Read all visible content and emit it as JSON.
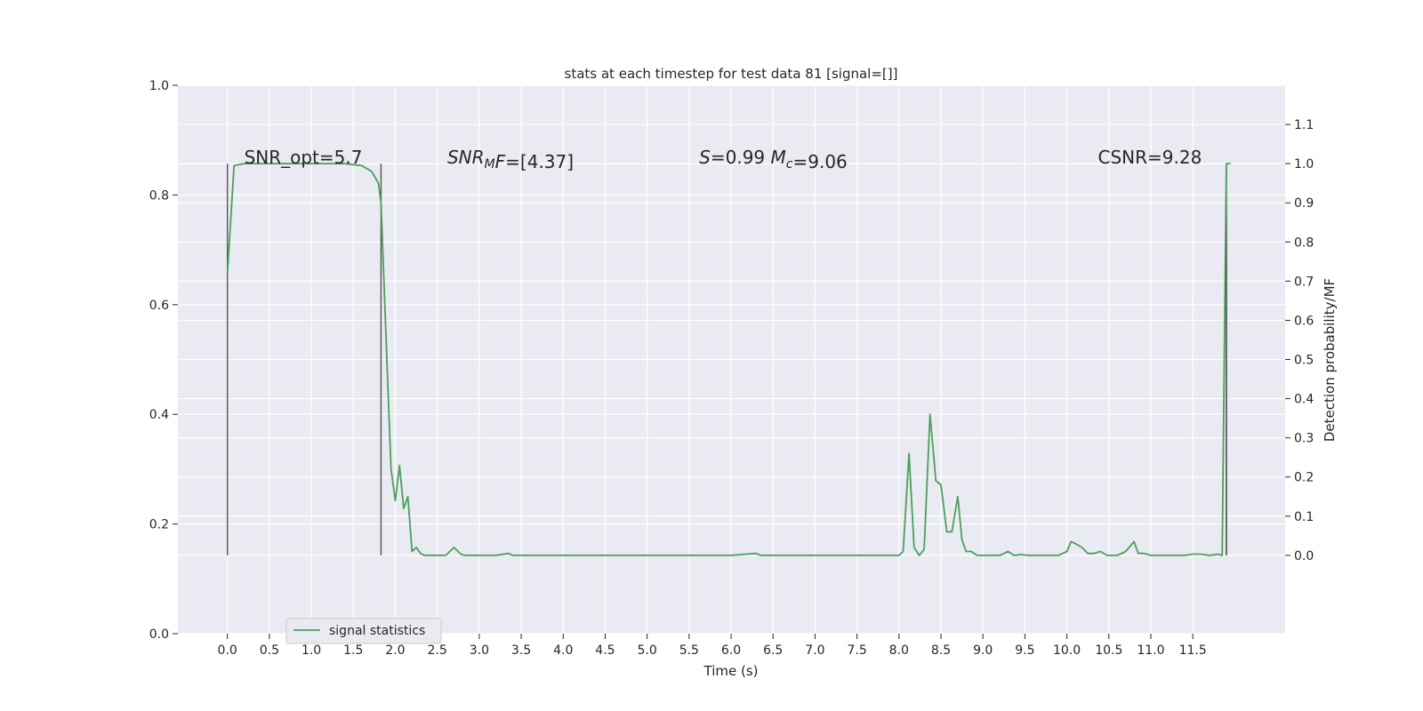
{
  "chart_data": {
    "type": "line",
    "title": "stats at each timestep for test data 81 [signal=[]]",
    "xlabel": "Time (s)",
    "ylabel_right": "Detection probability/MF",
    "xlim": [
      -0.59,
      12.6
    ],
    "ylim_left": [
      0.0,
      1.0
    ],
    "ylim_right": [
      -0.2,
      1.2
    ],
    "xticks": [
      0.0,
      0.5,
      1.0,
      1.5,
      2.0,
      2.5,
      3.0,
      3.5,
      4.0,
      4.5,
      5.0,
      5.5,
      6.0,
      6.5,
      7.0,
      7.5,
      8.0,
      8.5,
      9.0,
      9.5,
      10.0,
      10.5,
      11.0,
      11.5
    ],
    "xtick_labels": [
      "0.0",
      "0.5",
      "1.0",
      "1.5",
      "2.0",
      "2.5",
      "3.0",
      "3.5",
      "4.0",
      "4.5",
      "5.0",
      "5.5",
      "6.0",
      "6.5",
      "7.0",
      "7.5",
      "8.0",
      "8.5",
      "9.0",
      "9.5",
      "10.0",
      "10.5",
      "11.0",
      "11.5"
    ],
    "yticks_left": [
      0.0,
      0.2,
      0.4,
      0.6,
      0.8,
      1.0
    ],
    "ytick_labels_left": [
      "0.0",
      "0.2",
      "0.4",
      "0.6",
      "0.8",
      "1.0"
    ],
    "yticks_right": [
      0.0,
      0.1,
      0.2,
      0.3,
      0.4,
      0.5,
      0.6,
      0.7,
      0.8,
      0.9,
      1.0,
      1.1
    ],
    "ytick_labels_right": [
      "0.0",
      "0.1",
      "0.2",
      "0.3",
      "0.4",
      "0.5",
      "0.6",
      "0.7",
      "0.8",
      "0.9",
      "1.0",
      "1.1"
    ],
    "grid": true,
    "legend_position": "lower-left",
    "annotations": [
      {
        "id": "snr-opt",
        "parts": [
          {
            "t": "SNR_opt=5.7"
          }
        ],
        "x": 0.2
      },
      {
        "id": "snr-mf",
        "parts": [
          {
            "t": "SNR",
            "i": true
          },
          {
            "t": "M",
            "i": true,
            "sub": true
          },
          {
            "t": "F",
            "i": true
          },
          {
            "t": "=[4.37]"
          }
        ],
        "x": 2.62
      },
      {
        "id": "s-value",
        "parts": [
          {
            "t": "S",
            "i": true
          },
          {
            "t": "=0.99   "
          },
          {
            "t": "M",
            "i": true
          },
          {
            "t": "c",
            "i": true,
            "sub": true
          },
          {
            "t": "=9.06"
          }
        ],
        "x": 5.62
      },
      {
        "id": "csnr",
        "parts": [
          {
            "t": "CSNR=9.28"
          }
        ],
        "x": 10.37
      }
    ],
    "vertical_lines": [
      {
        "x": 0.0,
        "y0": 0.0,
        "y1": 1.0,
        "color": "#555555"
      },
      {
        "x": 1.83,
        "y0": 0.0,
        "y1": 1.0,
        "color": "#555555"
      },
      {
        "x": 11.9,
        "y0": 0.0,
        "y1": 1.0,
        "color": "#333333"
      }
    ],
    "series": [
      {
        "name": "signal statistics",
        "color": "#4c9f5a",
        "axis": "right",
        "x": [
          0.0,
          0.08,
          0.2,
          0.4,
          0.6,
          0.8,
          1.0,
          1.2,
          1.4,
          1.6,
          1.72,
          1.8,
          1.83,
          1.9,
          1.95,
          2.0,
          2.05,
          2.1,
          2.15,
          2.2,
          2.25,
          2.3,
          2.35,
          2.4,
          2.45,
          2.5,
          2.55,
          2.6,
          2.7,
          2.78,
          2.83,
          2.9,
          3.0,
          3.2,
          3.35,
          3.4,
          3.5,
          4.0,
          5.0,
          6.0,
          6.3,
          6.35,
          6.45,
          7.0,
          7.5,
          8.0,
          8.05,
          8.12,
          8.18,
          8.24,
          8.3,
          8.37,
          8.44,
          8.5,
          8.57,
          8.63,
          8.7,
          8.75,
          8.8,
          8.86,
          8.93,
          9.0,
          9.1,
          9.2,
          9.3,
          9.37,
          9.45,
          9.55,
          9.6,
          9.7,
          9.9,
          10.0,
          10.05,
          10.1,
          10.18,
          10.25,
          10.32,
          10.4,
          10.48,
          10.55,
          10.6,
          10.7,
          10.8,
          10.85,
          10.92,
          11.0,
          11.05,
          11.15,
          11.4,
          11.5,
          11.6,
          11.7,
          11.8,
          11.85,
          11.9,
          11.95
        ],
        "y": [
          0.72,
          0.995,
          1.0,
          1.0,
          1.0,
          1.0,
          1.0,
          1.0,
          1.0,
          0.995,
          0.98,
          0.95,
          0.9,
          0.5,
          0.22,
          0.14,
          0.23,
          0.12,
          0.15,
          0.01,
          0.02,
          0.005,
          0.0,
          0.0,
          0.0,
          0.0,
          0.0,
          0.0,
          0.02,
          0.003,
          0.0,
          0.0,
          0.0,
          0.0,
          0.005,
          0.0,
          0.0,
          0.0,
          0.0,
          0.0,
          0.005,
          0.0,
          0.0,
          0.0,
          0.0,
          0.0,
          0.01,
          0.26,
          0.02,
          0.0,
          0.015,
          0.36,
          0.19,
          0.18,
          0.06,
          0.06,
          0.15,
          0.04,
          0.01,
          0.01,
          0.0,
          0.0,
          0.0,
          0.0,
          0.01,
          0.0,
          0.002,
          0.0,
          0.0,
          0.0,
          0.0,
          0.01,
          0.035,
          0.03,
          0.02,
          0.005,
          0.005,
          0.01,
          0.0,
          0.0,
          0.0,
          0.01,
          0.035,
          0.005,
          0.005,
          0.0,
          0.0,
          0.0,
          0.0,
          0.003,
          0.003,
          0.0,
          0.003,
          0.0,
          1.0,
          1.0
        ]
      }
    ]
  }
}
